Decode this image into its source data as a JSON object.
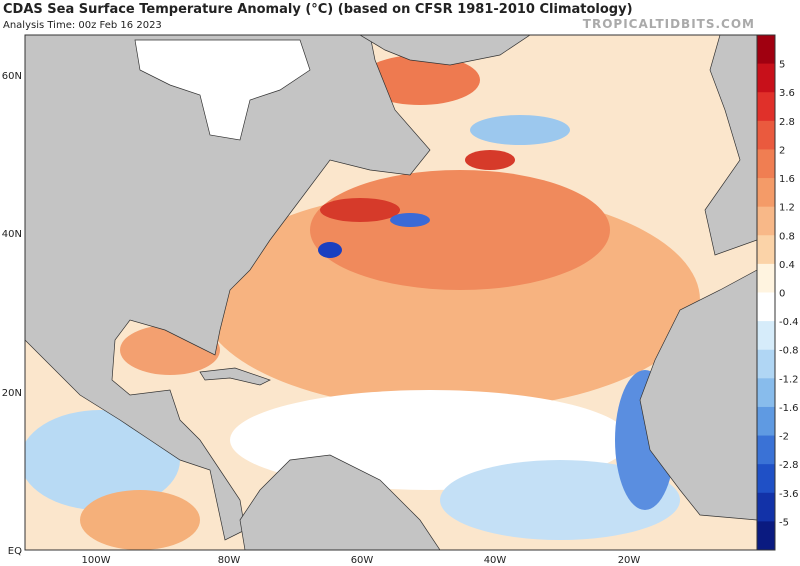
{
  "header": {
    "title": "CDAS Sea Surface Temperature Anomaly (°C) (based on CFSR 1981-2010 Climatology)",
    "subtitle": "Analysis Time: 00z Feb 16 2023",
    "watermark": "TROPICALTIDBITS.COM"
  },
  "map": {
    "lat_labels": [
      "60N",
      "40N",
      "20N",
      "EQ"
    ],
    "lon_labels": [
      "100W",
      "80W",
      "60W",
      "40W",
      "20W"
    ]
  },
  "colorbar": {
    "labels": [
      "5",
      "3.6",
      "2.8",
      "2",
      "1.6",
      "1.2",
      "0.8",
      "0.4",
      "0",
      "-0.4",
      "-0.8",
      "-1.2",
      "-1.6",
      "-2",
      "-2.8",
      "-3.6",
      "-5"
    ]
  }
}
